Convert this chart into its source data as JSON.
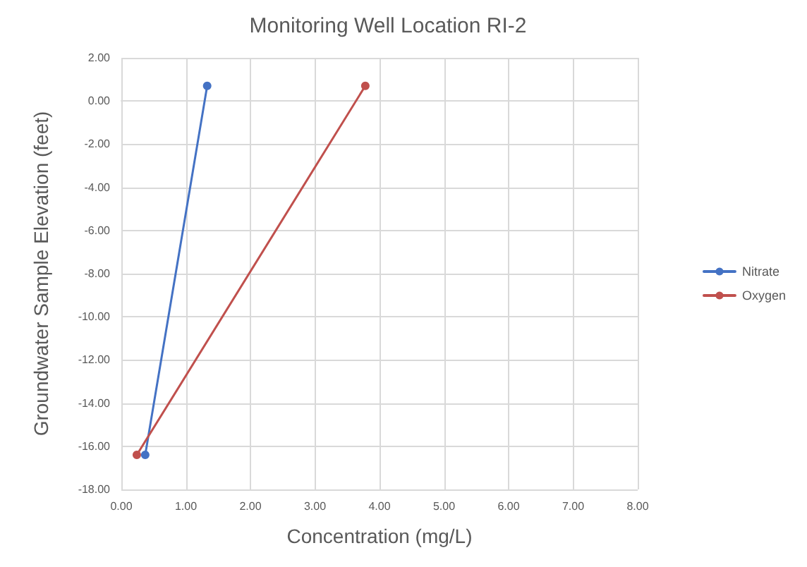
{
  "chart_data": {
    "type": "line",
    "title": "Monitoring Well Location RI-2",
    "xlabel": "Concentration (mg/L)",
    "ylabel": "Groundwater Sample Elevation (feet)",
    "series": [
      {
        "name": "Nitrate",
        "color": "#4472c4",
        "x": [
          1.33,
          0.37
        ],
        "values": [
          0.7,
          -16.4
        ]
      },
      {
        "name": "Oxygen",
        "color": "#c0504d",
        "x": [
          3.78,
          0.24
        ],
        "values": [
          0.7,
          -16.4
        ]
      }
    ],
    "xlim": [
      0,
      8
    ],
    "ylim": [
      -18,
      2
    ],
    "xticks": [
      {
        "value": 0,
        "label": "0.00"
      },
      {
        "value": 1,
        "label": "1.00"
      },
      {
        "value": 2,
        "label": "2.00"
      },
      {
        "value": 3,
        "label": "3.00"
      },
      {
        "value": 4,
        "label": "4.00"
      },
      {
        "value": 5,
        "label": "5.00"
      },
      {
        "value": 6,
        "label": "6.00"
      },
      {
        "value": 7,
        "label": "7.00"
      },
      {
        "value": 8,
        "label": "8.00"
      }
    ],
    "yticks": [
      {
        "value": -18,
        "label": "-18.00"
      },
      {
        "value": -16,
        "label": "-16.00"
      },
      {
        "value": -14,
        "label": "-14.00"
      },
      {
        "value": -12,
        "label": "-12.00"
      },
      {
        "value": -10,
        "label": "-10.00"
      },
      {
        "value": -8,
        "label": "-8.00"
      },
      {
        "value": -6,
        "label": "-6.00"
      },
      {
        "value": -4,
        "label": "-4.00"
      },
      {
        "value": -2,
        "label": "-2.00"
      },
      {
        "value": 0,
        "label": "0.00"
      },
      {
        "value": 2,
        "label": "2.00"
      }
    ],
    "grid": true,
    "legend": "right",
    "marker": "circle",
    "line_style": "solid"
  }
}
